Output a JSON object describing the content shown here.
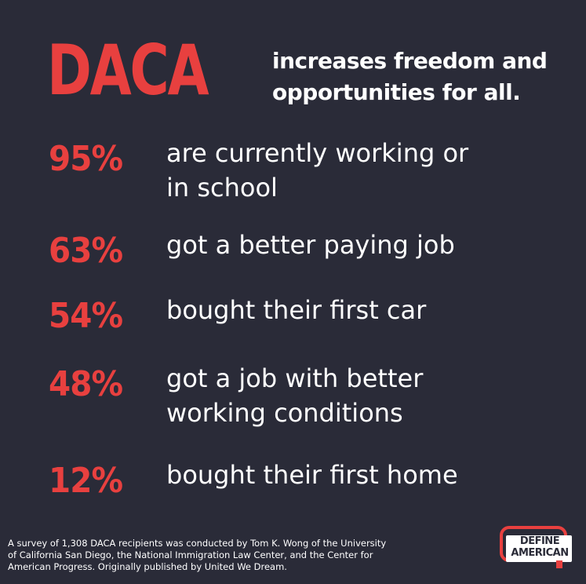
{
  "headline": {
    "keyword": "DACA",
    "line1": "increases freedom and",
    "line2": "opportunities for all."
  },
  "stats": [
    {
      "value": "95%",
      "line1": "are currently working or",
      "line2": "in school"
    },
    {
      "value": "63%",
      "line1": "got a better paying job",
      "line2": ""
    },
    {
      "value": "54%",
      "line1": "bought their first car",
      "line2": ""
    },
    {
      "value": "48%",
      "line1": "got a job with better",
      "line2": "working conditions"
    },
    {
      "value": "12%",
      "line1": "bought their first home",
      "line2": ""
    }
  ],
  "footer": {
    "line1": "A survey of 1,308 DACA recipients was conducted by Tom K. Wong of the University",
    "line2": "of California San Diego, the National Immigration Law Center, and the Center for",
    "line3": "American Progress. Originally published by United We Dream."
  },
  "logo": {
    "line1": "DEFINE",
    "line2": "AMERICAN"
  },
  "colors": {
    "background": "#2a2b38",
    "accent": "#e8403f",
    "text": "#ffffff"
  }
}
